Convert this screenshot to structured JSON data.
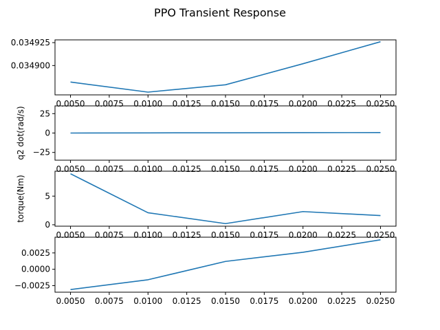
{
  "figure": {
    "title": "PPO Transient Response",
    "line_color": "#1f77b4"
  },
  "chart_data": [
    {
      "type": "line",
      "title": "",
      "xlabel": "",
      "ylabel": "",
      "x": [
        0.005,
        0.01,
        0.015,
        0.02,
        0.025
      ],
      "series": [
        {
          "values": [
            0.034882,
            0.034871,
            0.034879,
            0.034902,
            0.034926
          ]
        }
      ],
      "xlim": [
        0.004,
        0.026
      ],
      "ylim": [
        0.034868,
        0.034928
      ],
      "xticks": [
        0.005,
        0.0075,
        0.01,
        0.0125,
        0.015,
        0.0175,
        0.02,
        0.0225,
        0.025
      ],
      "xtick_labels": [
        "0.0050",
        "0.0075",
        "0.0100",
        "0.0125",
        "0.0150",
        "0.0175",
        "0.0200",
        "0.0225",
        "0.0250"
      ],
      "yticks": [
        0.0349,
        0.034925
      ],
      "ytick_labels": [
        "0.034900",
        "0.034925"
      ],
      "grid": false
    },
    {
      "type": "line",
      "title": "",
      "xlabel": "",
      "ylabel": "q2 dot(rad/s)",
      "x": [
        0.005,
        0.01,
        0.015,
        0.02,
        0.025
      ],
      "series": [
        {
          "values": [
            0.0,
            0.2,
            0.3,
            0.5,
            0.6
          ]
        }
      ],
      "xlim": [
        0.004,
        0.026
      ],
      "ylim": [
        -35,
        35
      ],
      "xticks": [
        0.005,
        0.0075,
        0.01,
        0.0125,
        0.015,
        0.0175,
        0.02,
        0.0225,
        0.025
      ],
      "xtick_labels": [
        "0.0050",
        "0.0075",
        "0.0100",
        "0.0125",
        "0.0150",
        "0.0175",
        "0.0200",
        "0.0225",
        "0.0250"
      ],
      "yticks": [
        -25,
        0,
        25
      ],
      "ytick_labels": [
        "−25",
        "0",
        "25"
      ],
      "grid": false
    },
    {
      "type": "line",
      "title": "",
      "xlabel": "",
      "ylabel": "torque(Nm)",
      "x": [
        0.005,
        0.01,
        0.015,
        0.02,
        0.025
      ],
      "series": [
        {
          "values": [
            8.9,
            2.1,
            0.2,
            2.3,
            1.6
          ]
        }
      ],
      "xlim": [
        0.004,
        0.026
      ],
      "ylim": [
        -0.25,
        9.35
      ],
      "xticks": [
        0.005,
        0.0075,
        0.01,
        0.0125,
        0.015,
        0.0175,
        0.02,
        0.0225,
        0.025
      ],
      "xtick_labels": [
        "0.0050",
        "0.0075",
        "0.0100",
        "0.0125",
        "0.0150",
        "0.0175",
        "0.0200",
        "0.0225",
        "0.0250"
      ],
      "yticks": [
        0,
        5
      ],
      "ytick_labels": [
        "0",
        "5"
      ],
      "grid": false
    },
    {
      "type": "line",
      "title": "",
      "xlabel": "",
      "ylabel": "",
      "x": [
        0.005,
        0.01,
        0.015,
        0.02,
        0.025
      ],
      "series": [
        {
          "values": [
            -0.0031,
            -0.0016,
            0.0012,
            0.0026,
            0.0045
          ]
        }
      ],
      "xlim": [
        0.004,
        0.026
      ],
      "ylim": [
        -0.0035,
        0.0049
      ],
      "xticks": [
        0.005,
        0.0075,
        0.01,
        0.0125,
        0.015,
        0.0175,
        0.02,
        0.0225,
        0.025
      ],
      "xtick_labels": [
        "0.0050",
        "0.0075",
        "0.0100",
        "0.0125",
        "0.0150",
        "0.0175",
        "0.0200",
        "0.0225",
        "0.0250"
      ],
      "yticks": [
        -0.0025,
        0.0,
        0.0025
      ],
      "ytick_labels": [
        "−0.0025",
        "0.0000",
        "0.0025"
      ],
      "grid": false
    }
  ]
}
